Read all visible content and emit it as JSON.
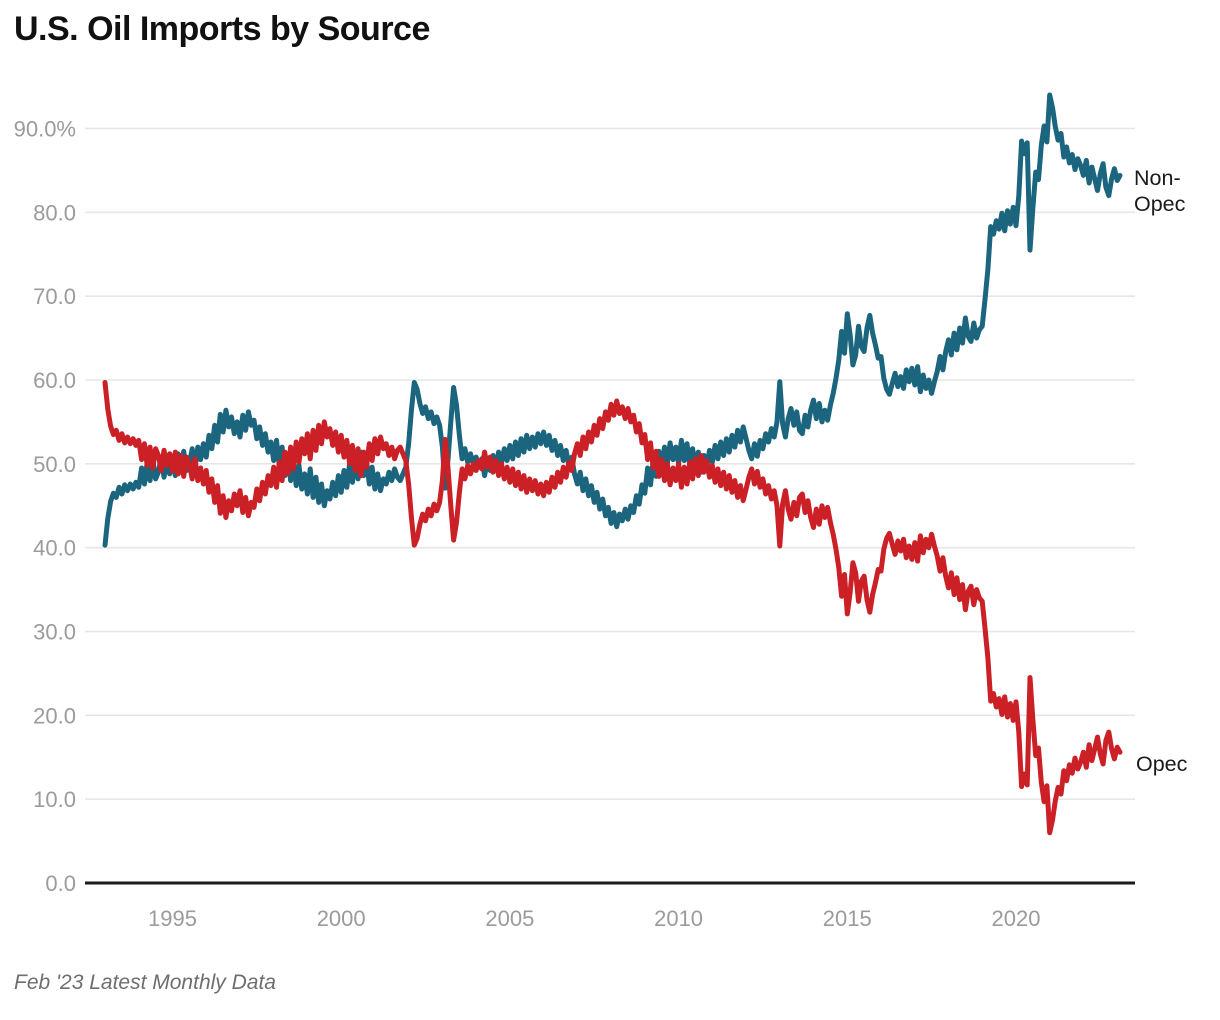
{
  "title": "U.S. Oil Imports by Source",
  "footer": "Feb '23 Latest Monthly Data",
  "series_labels": {
    "non_opec_line1": "Non-",
    "non_opec_line2": "Opec",
    "opec": "Opec"
  },
  "colors": {
    "non_opec": "#1b657f",
    "opec": "#cb2026",
    "grid": "#e6e6e6",
    "axis": "#1a1a1a",
    "tick_label": "#9b9b9b",
    "title": "#111111",
    "footer": "#6e6e6e"
  },
  "y_axis": {
    "ticks": [
      {
        "value": 0,
        "label": "0.0"
      },
      {
        "value": 10,
        "label": "10.0"
      },
      {
        "value": 20,
        "label": "20.0"
      },
      {
        "value": 30,
        "label": "30.0"
      },
      {
        "value": 40,
        "label": "40.0"
      },
      {
        "value": 50,
        "label": "50.0"
      },
      {
        "value": 60,
        "label": "60.0"
      },
      {
        "value": 70,
        "label": "70.0"
      },
      {
        "value": 80,
        "label": "80.0"
      },
      {
        "value": 90,
        "label": "90.0%"
      }
    ]
  },
  "x_axis": {
    "ticks": [
      {
        "year": 1995,
        "label": "1995"
      },
      {
        "year": 2000,
        "label": "2000"
      },
      {
        "year": 2005,
        "label": "2005"
      },
      {
        "year": 2010,
        "label": "2010"
      },
      {
        "year": 2015,
        "label": "2015"
      },
      {
        "year": 2020,
        "label": "2020"
      }
    ]
  },
  "chart_data": {
    "type": "line",
    "title": "U.S. Oil Imports by Source",
    "unit": "%",
    "frequency": "monthly",
    "x_start": "1993-01",
    "x_end": "2023-02",
    "start_year": 1993,
    "ylim": [
      0,
      95
    ],
    "grid": "horizontal",
    "legend_position": "right-end-of-line",
    "series": [
      {
        "name": "Non-Opec",
        "color": "#1b657f",
        "values": [
          40.3,
          43.5,
          45.5,
          46.5,
          46.0,
          47.2,
          46.4,
          47.5,
          46.8,
          47.6,
          47.0,
          47.8,
          47.2,
          49.5,
          47.6,
          50.2,
          48.0,
          50.5,
          48.2,
          49.0,
          50.8,
          48.4,
          50.2,
          48.8,
          50.9,
          48.6,
          51.2,
          49.0,
          51.5,
          49.2,
          50.0,
          51.8,
          49.4,
          52.0,
          50.5,
          52.4,
          50.8,
          53.4,
          51.8,
          54.6,
          52.6,
          55.9,
          53.8,
          56.4,
          54.4,
          55.6,
          53.6,
          55.0,
          53.2,
          55.8,
          54.0,
          56.2,
          54.6,
          55.2,
          53.0,
          54.4,
          52.2,
          53.6,
          51.4,
          52.6,
          50.4,
          52.8,
          49.8,
          52.0,
          48.6,
          51.2,
          48.0,
          50.6,
          47.4,
          49.8,
          47.0,
          48.8,
          46.4,
          49.4,
          46.0,
          48.4,
          45.4,
          47.6,
          45.0,
          46.8,
          45.8,
          47.8,
          46.2,
          48.6,
          46.6,
          49.2,
          47.2,
          50.0,
          47.8,
          50.8,
          48.2,
          51.4,
          48.6,
          50.4,
          47.6,
          49.6,
          47.0,
          48.8,
          46.8,
          48.2,
          47.6,
          49.0,
          48.0,
          49.4,
          48.4,
          48.0,
          48.8,
          49.6,
          52.5,
          56.5,
          59.7,
          58.9,
          57.2,
          56.0,
          56.8,
          55.4,
          56.2,
          54.8,
          55.6,
          54.6,
          52.0,
          47.1,
          50.5,
          55.0,
          59.1,
          57.0,
          53.5,
          50.6,
          51.8,
          50.2,
          51.2,
          50.0,
          50.8,
          49.6,
          50.6,
          48.6,
          50.4,
          49.2,
          51.0,
          49.6,
          51.4,
          50.0,
          51.8,
          50.4,
          52.2,
          50.6,
          52.6,
          51.0,
          53.0,
          51.4,
          53.4,
          51.8,
          53.2,
          52.0,
          53.6,
          52.4,
          53.8,
          52.2,
          53.4,
          51.6,
          52.8,
          51.0,
          52.2,
          50.4,
          51.6,
          49.8,
          50.8,
          48.8,
          47.6,
          49.0,
          46.8,
          48.2,
          46.2,
          47.4,
          45.4,
          46.6,
          44.6,
          45.8,
          43.8,
          44.8,
          42.9,
          44.2,
          42.5,
          44.0,
          43.2,
          44.6,
          43.4,
          45.0,
          44.2,
          46.2,
          45.2,
          47.5,
          46.5,
          49.5,
          47.5,
          50.5,
          48.5,
          51.5,
          49.5,
          52.0,
          50.0,
          52.5,
          50.5,
          52.0,
          50.0,
          52.8,
          50.4,
          52.4,
          49.8,
          51.8,
          49.4,
          51.4,
          49.0,
          51.0,
          49.6,
          51.6,
          50.2,
          52.2,
          50.6,
          52.6,
          51.0,
          53.0,
          51.4,
          53.4,
          52.0,
          54.0,
          52.6,
          54.4,
          53.0,
          51.6,
          50.6,
          52.4,
          50.9,
          52.8,
          51.8,
          53.6,
          52.6,
          54.2,
          53.2,
          55.0,
          59.8,
          54.8,
          53.2,
          55.4,
          56.6,
          54.6,
          56.2,
          54.0,
          53.6,
          55.8,
          54.4,
          56.4,
          57.6,
          55.4,
          57.2,
          55.0,
          56.4,
          55.2,
          57.0,
          58.4,
          60.2,
          62.4,
          65.8,
          63.2,
          67.9,
          65.4,
          61.8,
          63.0,
          66.4,
          64.0,
          63.4,
          66.2,
          67.7,
          65.6,
          64.2,
          62.6,
          62.8,
          60.2,
          58.9,
          58.3,
          59.6,
          60.8,
          59.2,
          60.4,
          59.0,
          61.2,
          59.8,
          61.4,
          59.4,
          61.6,
          58.6,
          60.6,
          59.0,
          60.0,
          58.4,
          59.8,
          61.0,
          62.8,
          61.2,
          63.4,
          64.8,
          63.0,
          65.6,
          63.6,
          66.2,
          64.4,
          67.4,
          65.2,
          64.6,
          66.8,
          65.0,
          66.0,
          66.4,
          69.6,
          73.2,
          78.3,
          77.4,
          79.0,
          78.0,
          79.9,
          77.8,
          80.2,
          78.6,
          80.6,
          78.4,
          82.0,
          88.5,
          87.0,
          88.3,
          75.5,
          80.4,
          84.8,
          83.9,
          88.0,
          90.3,
          88.4,
          94.0,
          92.5,
          90.2,
          88.6,
          89.4,
          86.6,
          87.8,
          85.9,
          86.9,
          85.1,
          86.4,
          85.6,
          84.4,
          86.2,
          83.5,
          85.4,
          84.0,
          82.6,
          84.6,
          85.8,
          83.0,
          82.0,
          84.0,
          85.2,
          83.8,
          84.4
        ]
      },
      {
        "name": "Opec",
        "color": "#cb2026",
        "values": [
          59.7,
          56.5,
          54.5,
          53.5,
          54.0,
          52.8,
          53.6,
          52.5,
          53.2,
          52.4,
          53.0,
          52.2,
          52.8,
          50.5,
          52.4,
          49.8,
          52.0,
          49.5,
          51.8,
          51.0,
          49.2,
          51.6,
          49.8,
          51.2,
          49.1,
          51.4,
          48.8,
          51.0,
          48.5,
          50.8,
          50.0,
          48.2,
          50.6,
          48.0,
          49.5,
          47.6,
          49.2,
          46.6,
          48.2,
          45.4,
          47.4,
          44.1,
          46.2,
          43.6,
          45.6,
          44.4,
          46.4,
          45.0,
          46.8,
          44.2,
          46.0,
          43.8,
          45.4,
          44.8,
          47.0,
          45.6,
          47.8,
          46.4,
          48.6,
          47.4,
          49.6,
          47.2,
          50.2,
          48.0,
          51.4,
          48.8,
          52.0,
          49.4,
          52.6,
          50.2,
          53.0,
          51.2,
          53.6,
          50.6,
          54.0,
          51.6,
          54.6,
          52.4,
          55.0,
          53.2,
          54.2,
          52.2,
          53.8,
          51.4,
          53.4,
          50.8,
          52.8,
          50.0,
          52.2,
          49.2,
          51.8,
          48.6,
          51.4,
          49.6,
          52.4,
          50.4,
          53.0,
          51.2,
          53.2,
          51.8,
          52.4,
          51.0,
          52.0,
          50.6,
          51.6,
          52.0,
          51.2,
          50.4,
          47.5,
          43.5,
          40.3,
          41.1,
          42.8,
          44.0,
          43.2,
          44.6,
          43.8,
          45.2,
          44.4,
          45.4,
          48.0,
          52.9,
          49.5,
          45.0,
          40.9,
          43.0,
          46.5,
          49.4,
          48.2,
          49.8,
          48.8,
          50.0,
          49.2,
          50.4,
          49.4,
          51.4,
          49.6,
          50.8,
          49.0,
          50.4,
          48.6,
          50.0,
          48.2,
          49.6,
          47.8,
          49.4,
          47.4,
          49.0,
          47.0,
          48.6,
          46.6,
          48.2,
          46.8,
          48.0,
          46.4,
          47.6,
          46.2,
          47.8,
          46.6,
          48.4,
          47.2,
          49.0,
          47.8,
          49.6,
          48.4,
          50.2,
          49.2,
          51.2,
          52.4,
          51.0,
          53.2,
          51.8,
          53.8,
          52.6,
          54.6,
          53.4,
          55.4,
          54.2,
          56.2,
          55.2,
          57.1,
          55.8,
          57.5,
          56.0,
          56.8,
          55.4,
          56.6,
          55.0,
          55.8,
          53.8,
          54.8,
          52.5,
          53.5,
          50.5,
          52.5,
          49.5,
          51.5,
          48.5,
          50.5,
          48.0,
          50.0,
          47.5,
          49.5,
          48.0,
          50.0,
          47.2,
          49.6,
          47.6,
          50.2,
          48.2,
          50.6,
          48.6,
          51.0,
          49.0,
          50.4,
          48.4,
          49.8,
          47.8,
          49.4,
          47.4,
          49.0,
          47.0,
          48.6,
          46.6,
          48.0,
          46.0,
          47.4,
          45.6,
          47.0,
          48.4,
          49.4,
          47.6,
          49.1,
          47.2,
          48.2,
          46.4,
          47.4,
          45.8,
          46.8,
          45.0,
          40.2,
          45.2,
          46.8,
          44.6,
          43.4,
          45.4,
          43.8,
          46.0,
          46.4,
          44.2,
          45.6,
          43.6,
          42.4,
          44.6,
          42.8,
          45.0,
          43.6,
          44.8,
          43.0,
          41.6,
          39.8,
          37.6,
          34.2,
          36.8,
          32.1,
          34.6,
          38.2,
          37.0,
          33.6,
          36.0,
          36.6,
          33.8,
          32.3,
          34.4,
          35.8,
          37.4,
          37.2,
          39.8,
          41.1,
          41.7,
          40.4,
          39.2,
          40.8,
          39.6,
          41.0,
          38.8,
          40.2,
          38.6,
          40.6,
          38.4,
          41.4,
          39.4,
          41.0,
          40.0,
          41.6,
          40.2,
          39.0,
          37.2,
          38.8,
          36.6,
          35.2,
          37.0,
          34.4,
          36.4,
          33.8,
          35.6,
          32.6,
          34.8,
          35.4,
          33.2,
          35.0,
          34.0,
          33.6,
          30.4,
          26.8,
          21.7,
          22.6,
          21.0,
          22.0,
          20.1,
          22.2,
          19.8,
          21.4,
          19.4,
          21.6,
          18.0,
          11.5,
          13.0,
          11.7,
          24.5,
          19.6,
          15.2,
          16.1,
          12.0,
          9.7,
          11.6,
          6.0,
          7.5,
          9.8,
          11.4,
          10.6,
          13.4,
          12.2,
          14.1,
          13.1,
          14.9,
          13.6,
          14.4,
          15.6,
          13.8,
          16.5,
          14.6,
          16.0,
          17.4,
          15.4,
          14.2,
          17.0,
          18.0,
          16.0,
          14.8,
          16.2,
          15.6
        ]
      }
    ]
  }
}
